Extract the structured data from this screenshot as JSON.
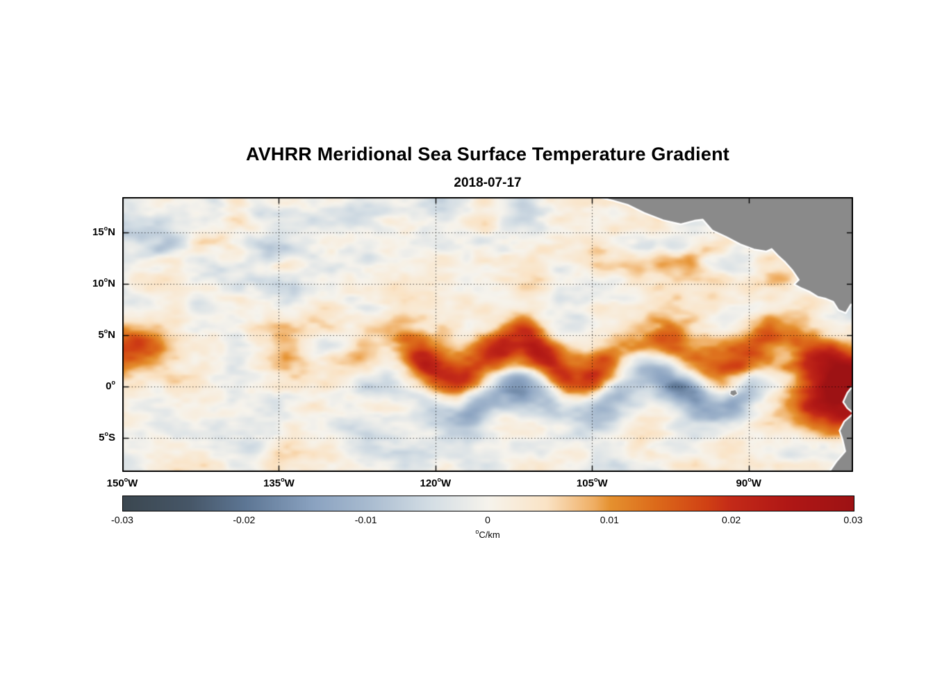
{
  "page": {
    "background": "#ffffff"
  },
  "chart_data": {
    "type": "heatmap",
    "title": "AVHRR Meridional Sea Surface Temperature Gradient",
    "subtitle": "2018-07-17",
    "deg_symbol": "o",
    "x_axis": {
      "range": [
        -150,
        -80
      ],
      "gridlines": [
        -135,
        -120,
        -105,
        -90
      ],
      "ticks": [
        {
          "value": -150,
          "num": "150",
          "hemi": "W"
        },
        {
          "value": -135,
          "num": "135",
          "hemi": "W"
        },
        {
          "value": -120,
          "num": "120",
          "hemi": "W"
        },
        {
          "value": -105,
          "num": "105",
          "hemi": "W"
        },
        {
          "value": -90,
          "num": "90",
          "hemi": "W"
        }
      ]
    },
    "y_axis": {
      "range": [
        -8.31,
        18.45
      ],
      "gridlines": [
        15,
        10,
        5,
        0,
        -5
      ],
      "ticks": [
        {
          "value": 15,
          "num": "15",
          "hemi": "N"
        },
        {
          "value": 10,
          "num": "10",
          "hemi": "N"
        },
        {
          "value": 5,
          "num": "5",
          "hemi": "N"
        },
        {
          "value": 0,
          "num": "0",
          "hemi": ""
        },
        {
          "value": -5,
          "num": "5",
          "hemi": "S"
        }
      ]
    },
    "colorbar": {
      "min": -0.03,
      "max": 0.03,
      "ticks": [
        "-0.03",
        "-0.02",
        "-0.01",
        "0",
        "0.01",
        "0.02",
        "0.03"
      ],
      "units_sup": "o",
      "units_text": "C/km",
      "stops": [
        {
          "p": 0.0,
          "c": "#3b4750"
        },
        {
          "p": 0.09,
          "c": "#465667"
        },
        {
          "p": 0.167,
          "c": "#5d7694"
        },
        {
          "p": 0.26,
          "c": "#8aa2c0"
        },
        {
          "p": 0.333,
          "c": "#a7bacf"
        },
        {
          "p": 0.42,
          "c": "#d3dde4"
        },
        {
          "p": 0.5,
          "c": "#f6f3ec"
        },
        {
          "p": 0.58,
          "c": "#fae3c5"
        },
        {
          "p": 0.645,
          "c": "#efae63"
        },
        {
          "p": 0.667,
          "c": "#e5912f"
        },
        {
          "p": 0.73,
          "c": "#dc6a1a"
        },
        {
          "p": 0.8,
          "c": "#d04014"
        },
        {
          "p": 0.833,
          "c": "#c32a18"
        },
        {
          "p": 0.91,
          "c": "#b01715"
        },
        {
          "p": 1.0,
          "c": "#9d1214"
        }
      ]
    },
    "features": [
      "Strong meandering positive (orange-red) meridional SST gradient band between about 0 and 5N across the basin (north equatorial front), peaks exceeding +0.02 C/km",
      "Negative (blue) gradient band just south of the equator, strongest between about 120W and 92W",
      "Scattered negative (blue-gray) patches between 10N and 17N in the western half",
      "Positive (orange) streaks between 10N and 15N east of about 110W off the Central American coast",
      "Intense positive patch adjacent to the Ecuador-Peru coast near 85W-80W, 0-3S",
      "Gray land mask: Mexico and Central America in the upper right, Galapagos Islands near 91W 0.6S, South America in the lower right",
      "Dotted graticule lines at 5-degree latitude and 15-degree longitude intervals"
    ],
    "land": {
      "fill": "#8a8a8a",
      "outline": "#ffffff",
      "polygons": {
        "central_america": [
          [
            -105.3,
            19.2
          ],
          [
            -104.2,
            18.4
          ],
          [
            -103.0,
            18.1
          ],
          [
            -101.6,
            17.7
          ],
          [
            -100.0,
            16.9
          ],
          [
            -98.2,
            16.2
          ],
          [
            -96.5,
            15.8
          ],
          [
            -95.2,
            16.15
          ],
          [
            -94.4,
            16.25
          ],
          [
            -93.5,
            15.2
          ],
          [
            -92.2,
            14.6
          ],
          [
            -90.8,
            13.85
          ],
          [
            -89.5,
            13.35
          ],
          [
            -88.3,
            13.15
          ],
          [
            -87.8,
            13.4
          ],
          [
            -87.2,
            12.75
          ],
          [
            -86.5,
            12.1
          ],
          [
            -85.8,
            11.3
          ],
          [
            -85.2,
            10.4
          ],
          [
            -85.65,
            9.95
          ],
          [
            -84.9,
            9.55
          ],
          [
            -84.2,
            9.25
          ],
          [
            -83.4,
            8.75
          ],
          [
            -82.6,
            8.55
          ],
          [
            -81.9,
            8.25
          ],
          [
            -81.4,
            7.45
          ],
          [
            -80.7,
            7.15
          ],
          [
            -80.2,
            8.0
          ],
          [
            -79.6,
            7.6
          ],
          [
            -78.0,
            7.8
          ],
          [
            -78.0,
            19.5
          ]
        ],
        "south_america": [
          [
            -78.0,
            0.6
          ],
          [
            -80.0,
            0.1
          ],
          [
            -80.55,
            -0.6
          ],
          [
            -80.95,
            -1.5
          ],
          [
            -80.55,
            -2.1
          ],
          [
            -79.95,
            -2.6
          ],
          [
            -80.85,
            -3.4
          ],
          [
            -81.3,
            -4.3
          ],
          [
            -81.0,
            -5.2
          ],
          [
            -80.75,
            -6.3
          ],
          [
            -81.6,
            -7.3
          ],
          [
            -82.35,
            -8.4
          ],
          [
            -82.5,
            -9.2
          ],
          [
            -78.0,
            -9.2
          ]
        ],
        "galapagos": [
          [
            -91.75,
            -0.4
          ],
          [
            -91.25,
            -0.3
          ],
          [
            -91.05,
            -0.7
          ],
          [
            -91.45,
            -0.95
          ],
          [
            -91.8,
            -0.75
          ]
        ]
      }
    },
    "synthesis": {
      "seed": 11,
      "grid": {
        "nx": 281,
        "ny": 105
      },
      "background": {
        "amp": 0.0082,
        "fx": 0.26,
        "fy": 0.5
      },
      "front": {
        "amp": 0.016,
        "ampVar": 0.0192,
        "center": 2.9,
        "waveAmp": 1.4,
        "waveFreq": 0.5,
        "wavePhase": 1.0,
        "noiseAmp": 1.5,
        "sigma": 1.7
      },
      "southBand": {
        "amp": -0.0135,
        "offset": -3.8,
        "sigma": 1.5,
        "fadeFrom": -133,
        "fadeTo": -116,
        "eastFadeFrom": -92,
        "eastFadeTo": -85
      },
      "neOrange": {
        "amp": 0.0095,
        "lat": 12.8,
        "sigma": 2.3,
        "fadeFrom": -114,
        "fadeTo": -96
      },
      "nwBlue": {
        "amp": -0.007,
        "lat": 14.6,
        "sigma": 2.6,
        "fadeFrom": -122,
        "fadeTo": -138
      },
      "coastBlob": {
        "amp": 0.03,
        "lon": -82.0,
        "lat": -1.6,
        "sx": 3.4,
        "sy": 1.9
      },
      "clip": 0.03
    }
  }
}
